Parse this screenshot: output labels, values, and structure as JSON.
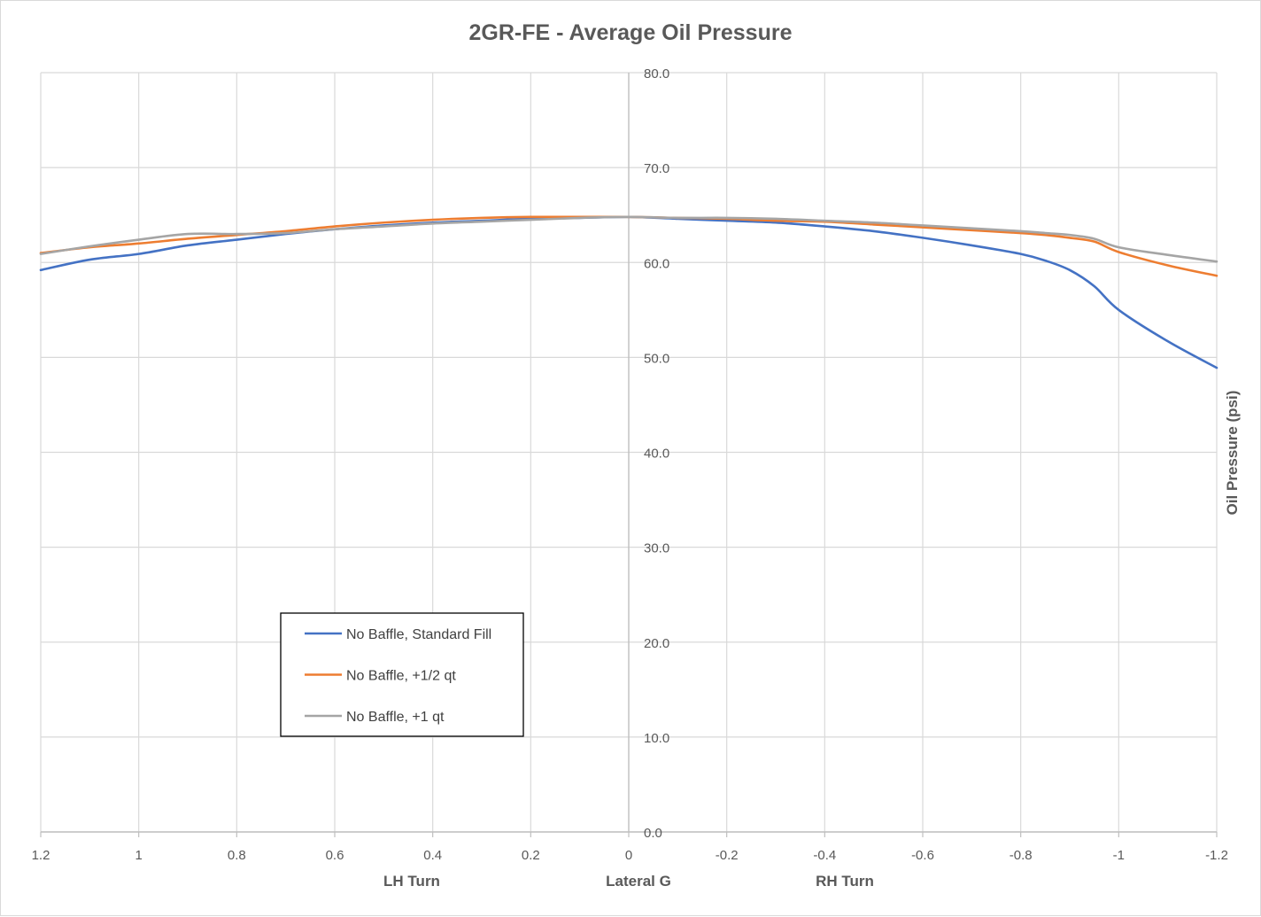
{
  "chart_data": {
    "type": "line",
    "title": "2GR-FE - Average Oil Pressure",
    "xlabel": "Lateral G",
    "ylabel": "Oil Pressure (psi)",
    "x_side_labels": {
      "left": "LH Turn",
      "right": "RH Turn"
    },
    "xlim": [
      1.2,
      -1.2
    ],
    "ylim": [
      0,
      80
    ],
    "x_reversed": true,
    "x_ticks": [
      1.2,
      1,
      0.8,
      0.6,
      0.4,
      0.2,
      0,
      -0.2,
      -0.4,
      -0.6,
      -0.8,
      -1,
      -1.2
    ],
    "x_tick_labels": [
      "1.2",
      "1",
      "0.8",
      "0.6",
      "0.4",
      "0.2",
      "0",
      "-0.2",
      "-0.4",
      "-0.6",
      "-0.8",
      "-1",
      "-1.2"
    ],
    "y_ticks": [
      0,
      10,
      20,
      30,
      40,
      50,
      60,
      70,
      80
    ],
    "y_tick_labels": [
      "0.0",
      "10.0",
      "20.0",
      "30.0",
      "40.0",
      "50.0",
      "60.0",
      "70.0",
      "80.0"
    ],
    "grid": true,
    "legend_position": "lower-left",
    "x": [
      1.2,
      1.1,
      1.0,
      0.9,
      0.8,
      0.7,
      0.6,
      0.5,
      0.4,
      0.3,
      0.2,
      0.1,
      0.0,
      -0.1,
      -0.2,
      -0.3,
      -0.4,
      -0.5,
      -0.6,
      -0.7,
      -0.8,
      -0.85,
      -0.9,
      -0.95,
      -1.0,
      -1.1,
      -1.2
    ],
    "series": [
      {
        "name": "No Baffle, Standard Fill",
        "color": "#4472C4",
        "values": [
          59.2,
          60.3,
          60.9,
          61.8,
          62.4,
          63.0,
          63.5,
          63.9,
          64.2,
          64.4,
          64.6,
          64.7,
          64.8,
          64.6,
          64.4,
          64.2,
          63.8,
          63.3,
          62.6,
          61.8,
          60.9,
          60.2,
          59.2,
          57.5,
          55.0,
          51.7,
          48.9
        ]
      },
      {
        "name": "No Baffle, +1/2 qt",
        "color": "#ED7D31",
        "values": [
          61.0,
          61.6,
          62.0,
          62.5,
          62.9,
          63.3,
          63.8,
          64.2,
          64.5,
          64.7,
          64.8,
          64.8,
          64.8,
          64.7,
          64.6,
          64.4,
          64.3,
          64.0,
          63.7,
          63.4,
          63.1,
          62.9,
          62.6,
          62.2,
          61.1,
          59.7,
          58.6
        ]
      },
      {
        "name": "No Baffle, +1 qt",
        "color": "#A5A5A5",
        "values": [
          60.9,
          61.7,
          62.4,
          63.0,
          63.0,
          63.1,
          63.5,
          63.8,
          64.1,
          64.3,
          64.5,
          64.7,
          64.8,
          64.7,
          64.7,
          64.6,
          64.4,
          64.2,
          63.9,
          63.6,
          63.3,
          63.1,
          62.9,
          62.5,
          61.6,
          60.8,
          60.1
        ]
      }
    ]
  }
}
